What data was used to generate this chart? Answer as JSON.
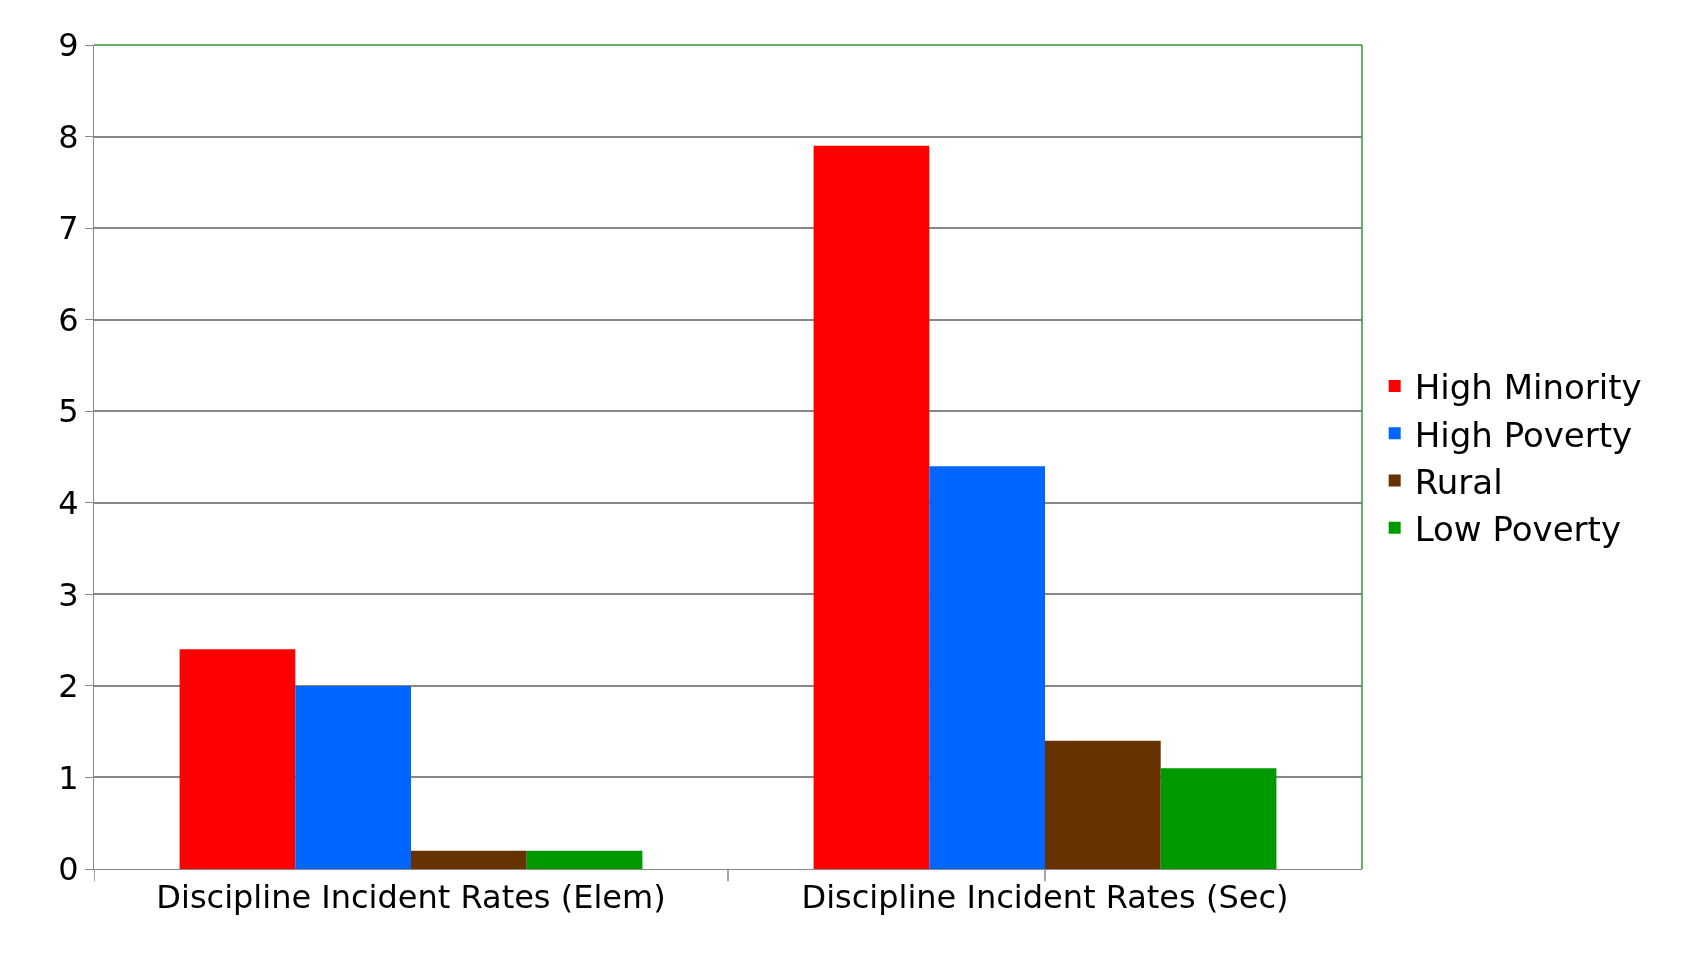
{
  "chart_data": {
    "type": "bar",
    "categories": [
      "Discipline Incident Rates (Elem)",
      "Discipline Incident Rates (Sec)"
    ],
    "series": [
      {
        "name": "High Minority",
        "color": "#ff0000",
        "values": [
          2.4,
          7.9
        ]
      },
      {
        "name": "High Poverty",
        "color": "#0066ff",
        "values": [
          2.0,
          4.4
        ]
      },
      {
        "name": "Rural",
        "color": "#663300",
        "values": [
          0.2,
          1.4
        ]
      },
      {
        "name": "Low Poverty",
        "color": "#009900",
        "values": [
          0.2,
          1.1
        ]
      }
    ],
    "ylim": [
      0,
      9
    ],
    "yticks": [
      0,
      1,
      2,
      3,
      4,
      5,
      6,
      7,
      8,
      9
    ],
    "grid": "y",
    "legend": "right"
  }
}
